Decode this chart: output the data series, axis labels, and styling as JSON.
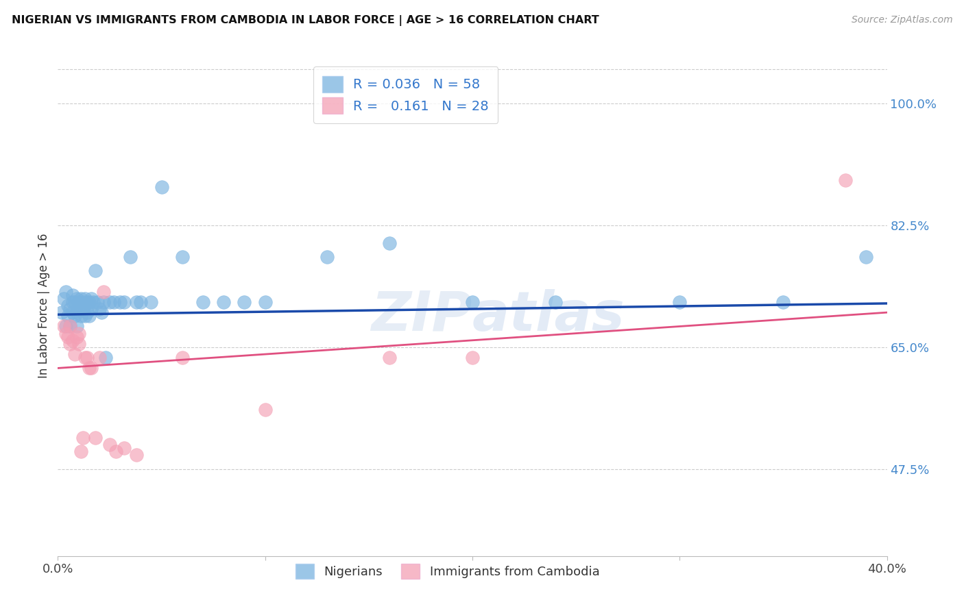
{
  "title": "NIGERIAN VS IMMIGRANTS FROM CAMBODIA IN LABOR FORCE | AGE > 16 CORRELATION CHART",
  "source": "Source: ZipAtlas.com",
  "ylabel": "In Labor Force | Age > 16",
  "xlim": [
    0.0,
    0.4
  ],
  "ylim": [
    0.35,
    1.07
  ],
  "yticks": [
    0.475,
    0.65,
    0.825,
    1.0
  ],
  "ytick_labels": [
    "47.5%",
    "65.0%",
    "82.5%",
    "100.0%"
  ],
  "xticks": [
    0.0,
    0.1,
    0.2,
    0.3,
    0.4
  ],
  "xtick_labels": [
    "0.0%",
    "",
    "",
    "",
    "40.0%"
  ],
  "blue_color": "#7ab3e0",
  "pink_color": "#f4a0b5",
  "blue_line_color": "#1a4aaa",
  "pink_line_color": "#e05080",
  "legend_blue_R": "0.036",
  "legend_blue_N": "58",
  "legend_pink_R": "0.161",
  "legend_pink_N": "28",
  "watermark": "ZIPAtlas",
  "nigerians_x": [
    0.002,
    0.003,
    0.004,
    0.004,
    0.005,
    0.005,
    0.006,
    0.006,
    0.007,
    0.007,
    0.007,
    0.008,
    0.008,
    0.009,
    0.009,
    0.009,
    0.01,
    0.01,
    0.011,
    0.011,
    0.012,
    0.012,
    0.013,
    0.013,
    0.014,
    0.014,
    0.015,
    0.015,
    0.016,
    0.016,
    0.017,
    0.018,
    0.019,
    0.02,
    0.021,
    0.022,
    0.023,
    0.025,
    0.027,
    0.03,
    0.032,
    0.035,
    0.038,
    0.04,
    0.045,
    0.05,
    0.06,
    0.07,
    0.08,
    0.09,
    0.1,
    0.13,
    0.16,
    0.2,
    0.24,
    0.3,
    0.35,
    0.39
  ],
  "nigerians_y": [
    0.7,
    0.72,
    0.68,
    0.73,
    0.695,
    0.71,
    0.705,
    0.68,
    0.715,
    0.7,
    0.725,
    0.695,
    0.715,
    0.7,
    0.72,
    0.68,
    0.715,
    0.705,
    0.72,
    0.695,
    0.705,
    0.715,
    0.695,
    0.72,
    0.7,
    0.715,
    0.695,
    0.715,
    0.705,
    0.72,
    0.715,
    0.76,
    0.715,
    0.705,
    0.7,
    0.715,
    0.635,
    0.715,
    0.715,
    0.715,
    0.715,
    0.78,
    0.715,
    0.715,
    0.715,
    0.88,
    0.78,
    0.715,
    0.715,
    0.715,
    0.715,
    0.78,
    0.8,
    0.715,
    0.715,
    0.715,
    0.715,
    0.78
  ],
  "cambodia_x": [
    0.003,
    0.004,
    0.005,
    0.006,
    0.006,
    0.007,
    0.008,
    0.009,
    0.01,
    0.01,
    0.011,
    0.012,
    0.013,
    0.014,
    0.015,
    0.016,
    0.018,
    0.02,
    0.022,
    0.025,
    0.028,
    0.032,
    0.038,
    0.06,
    0.1,
    0.16,
    0.2,
    0.38
  ],
  "cambodia_y": [
    0.68,
    0.67,
    0.665,
    0.655,
    0.68,
    0.66,
    0.64,
    0.665,
    0.655,
    0.67,
    0.5,
    0.52,
    0.635,
    0.635,
    0.62,
    0.62,
    0.52,
    0.635,
    0.73,
    0.51,
    0.5,
    0.505,
    0.495,
    0.635,
    0.56,
    0.635,
    0.635,
    0.89
  ],
  "blue_trend_x": [
    0.0,
    0.4
  ],
  "blue_trend_y": [
    0.697,
    0.713
  ],
  "pink_trend_x": [
    0.0,
    0.4
  ],
  "pink_trend_y": [
    0.62,
    0.7
  ]
}
